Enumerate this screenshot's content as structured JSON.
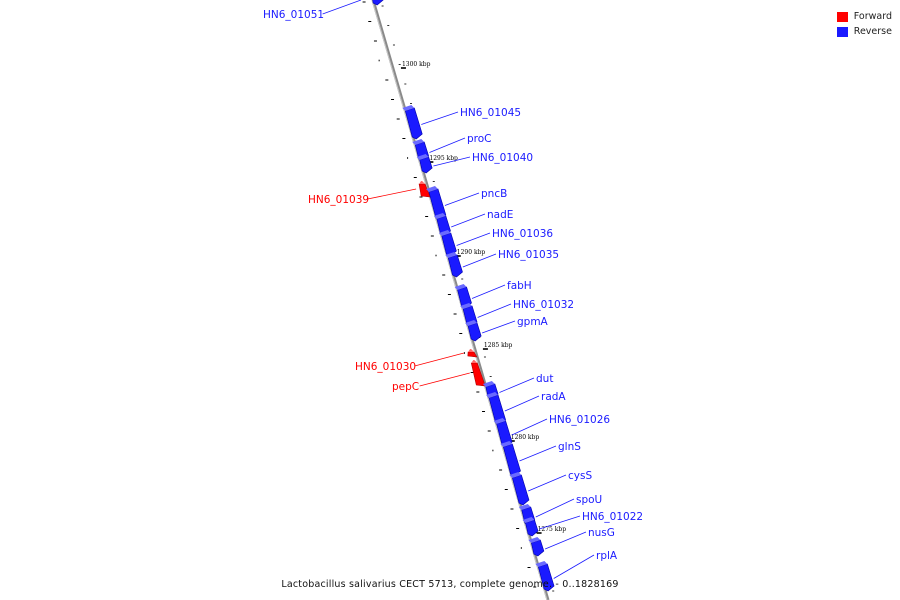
{
  "legend": {
    "forward_label": "Forward",
    "reverse_label": "Reverse",
    "forward_color": "#ff0000",
    "reverse_color": "#1a1aff"
  },
  "caption": "Lactobacillus salivarius CECT 5713, complete genome. - 0..1828169",
  "scale_labels": [
    "1300 kbp",
    "1295 kbp",
    "1290 kbp",
    "1285 kbp",
    "1280 kbp",
    "1275 kbp"
  ],
  "genes": [
    {
      "name": "HN6_01051",
      "strand": "reverse"
    },
    {
      "name": "HN6_01045",
      "strand": "reverse"
    },
    {
      "name": "proC",
      "strand": "reverse"
    },
    {
      "name": "HN6_01040",
      "strand": "reverse"
    },
    {
      "name": "HN6_01039",
      "strand": "forward"
    },
    {
      "name": "pncB",
      "strand": "reverse"
    },
    {
      "name": "nadE",
      "strand": "reverse"
    },
    {
      "name": "HN6_01036",
      "strand": "reverse"
    },
    {
      "name": "HN6_01035",
      "strand": "reverse"
    },
    {
      "name": "fabH",
      "strand": "reverse"
    },
    {
      "name": "HN6_01032",
      "strand": "reverse"
    },
    {
      "name": "gpmA",
      "strand": "reverse"
    },
    {
      "name": "HN6_01030",
      "strand": "forward"
    },
    {
      "name": "pepC",
      "strand": "forward"
    },
    {
      "name": "dut",
      "strand": "reverse"
    },
    {
      "name": "radA",
      "strand": "reverse"
    },
    {
      "name": "HN6_01026",
      "strand": "reverse"
    },
    {
      "name": "glnS",
      "strand": "reverse"
    },
    {
      "name": "cysS",
      "strand": "reverse"
    },
    {
      "name": "spoU",
      "strand": "reverse"
    },
    {
      "name": "HN6_01022",
      "strand": "reverse"
    },
    {
      "name": "nusG",
      "strand": "reverse"
    },
    {
      "name": "rplA",
      "strand": "reverse"
    }
  ]
}
